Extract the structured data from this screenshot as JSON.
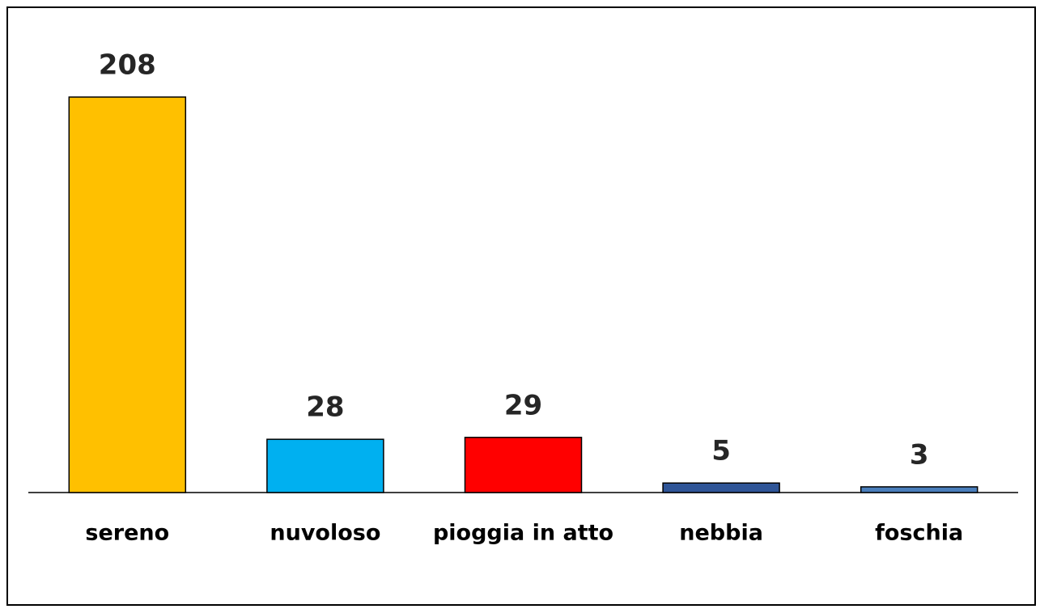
{
  "chart_data": {
    "type": "bar",
    "categories": [
      "sereno",
      "nuvoloso",
      "pioggia in atto",
      "nebbia",
      "foschia"
    ],
    "values": [
      208,
      28,
      29,
      5,
      3
    ],
    "colors": [
      "#ffc000",
      "#00b0f0",
      "#ff0000",
      "#2f5597",
      "#4a7ebb"
    ]
  }
}
